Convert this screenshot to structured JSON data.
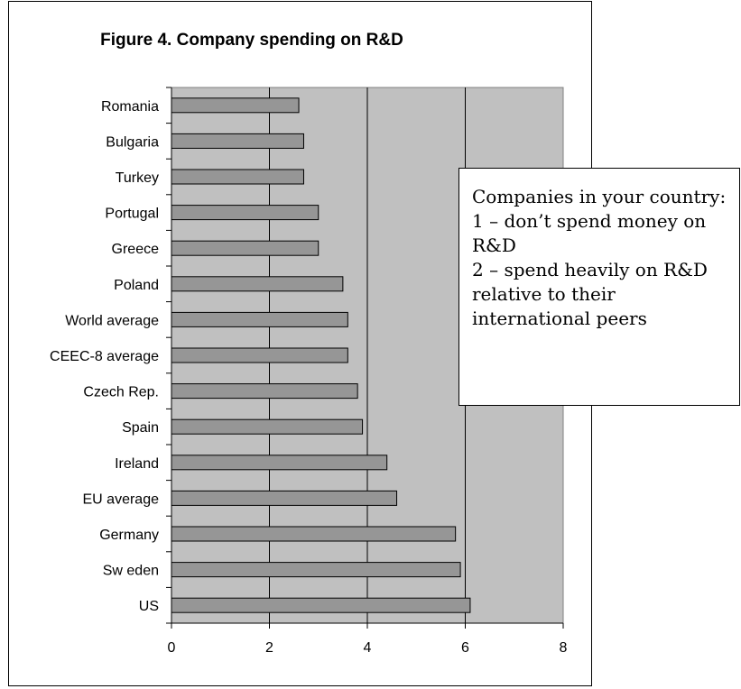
{
  "chart_data": {
    "type": "bar",
    "orientation": "horizontal",
    "title": "Figure 4. Company spending on R&D",
    "categories": [
      "Romania",
      "Bulgaria",
      "Turkey",
      "Portugal",
      "Greece",
      "Poland",
      "World average",
      "CEEC-8 average",
      "Czech Rep.",
      "Spain",
      "Ireland",
      "EU average",
      "Germany",
      "Sw eden",
      "US"
    ],
    "values": [
      2.6,
      2.7,
      2.7,
      3.0,
      3.0,
      3.5,
      3.6,
      3.6,
      3.8,
      3.9,
      4.4,
      4.6,
      5.8,
      5.9,
      6.1
    ],
    "xlim": [
      0,
      8
    ],
    "xticks": [
      0,
      2,
      4,
      6,
      8
    ],
    "xlabel": "",
    "ylabel": "",
    "grid": true,
    "legend": "none",
    "colors": {
      "bar": "#969696",
      "plot_bg": "#c0c0c0"
    }
  },
  "note": {
    "lines": [
      "Companies in your country:",
      "1 – don’t spend money on R&D",
      "2 – spend heavily on R&D relative to their international peers"
    ]
  }
}
